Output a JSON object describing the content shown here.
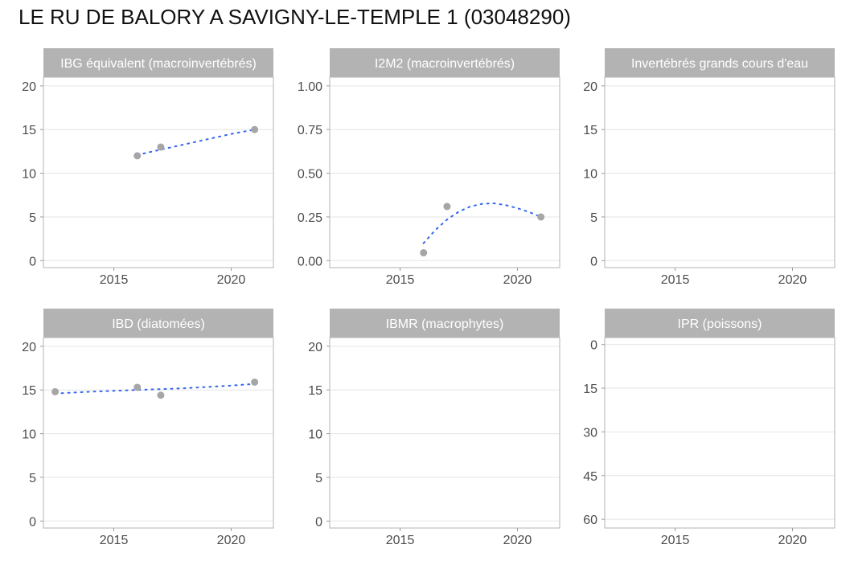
{
  "chart_data": {
    "title": "LE RU DE BALORY A SAVIGNY-LE-TEMPLE 1 (03048290)",
    "type": "scatter",
    "x_domain": [
      2012,
      2021.8
    ],
    "x_ticks": [
      2015,
      2020
    ],
    "panels": [
      {
        "title": "IBG équivalent (macroinvertébrés)",
        "y_domain": [
          -0.8,
          21.0
        ],
        "y_ticks": [
          0,
          5,
          10,
          15,
          20
        ],
        "y_tick_labels": [
          "0",
          "5",
          "10",
          "15",
          "20"
        ],
        "reversed": false,
        "points": [
          {
            "x": 2016,
            "y": 12
          },
          {
            "x": 2017,
            "y": 13
          },
          {
            "x": 2021,
            "y": 15
          }
        ],
        "trend": [
          {
            "x": 2016,
            "y": 12.1
          },
          {
            "x": 2017,
            "y": 12.7
          },
          {
            "x": 2018,
            "y": 13.3
          },
          {
            "x": 2019,
            "y": 13.9
          },
          {
            "x": 2020,
            "y": 14.5
          },
          {
            "x": 2021,
            "y": 15.0
          }
        ]
      },
      {
        "title": "I2M2 (macroinvertébrés)",
        "y_domain": [
          -0.04,
          1.05
        ],
        "y_ticks": [
          0,
          0.25,
          0.5,
          0.75,
          1.0
        ],
        "y_tick_labels": [
          "0.00",
          "0.25",
          "0.50",
          "0.75",
          "1.00"
        ],
        "reversed": false,
        "points": [
          {
            "x": 2016,
            "y": 0.045
          },
          {
            "x": 2017,
            "y": 0.31
          },
          {
            "x": 2021,
            "y": 0.25
          }
        ],
        "trend": [
          {
            "x": 2016,
            "y": 0.1
          },
          {
            "x": 2016.5,
            "y": 0.175
          },
          {
            "x": 2017,
            "y": 0.235
          },
          {
            "x": 2017.5,
            "y": 0.28
          },
          {
            "x": 2018,
            "y": 0.31
          },
          {
            "x": 2018.5,
            "y": 0.325
          },
          {
            "x": 2019,
            "y": 0.328
          },
          {
            "x": 2019.5,
            "y": 0.318
          },
          {
            "x": 2020,
            "y": 0.3
          },
          {
            "x": 2020.5,
            "y": 0.278
          },
          {
            "x": 2021,
            "y": 0.25
          }
        ]
      },
      {
        "title": "Invertébrés grands cours d'eau",
        "y_domain": [
          -0.8,
          21.0
        ],
        "y_ticks": [
          0,
          5,
          10,
          15,
          20
        ],
        "y_tick_labels": [
          "0",
          "5",
          "10",
          "15",
          "20"
        ],
        "reversed": false,
        "points": [],
        "trend": []
      },
      {
        "title": "IBD (diatomées)",
        "y_domain": [
          -0.8,
          21.0
        ],
        "y_ticks": [
          0,
          5,
          10,
          15,
          20
        ],
        "y_tick_labels": [
          "0",
          "5",
          "10",
          "15",
          "20"
        ],
        "reversed": false,
        "points": [
          {
            "x": 2012.5,
            "y": 14.8
          },
          {
            "x": 2016,
            "y": 15.3
          },
          {
            "x": 2017,
            "y": 14.4
          },
          {
            "x": 2021,
            "y": 15.9
          }
        ],
        "trend": [
          {
            "x": 2012.5,
            "y": 14.6
          },
          {
            "x": 2014,
            "y": 14.8
          },
          {
            "x": 2016,
            "y": 15.0
          },
          {
            "x": 2018,
            "y": 15.2
          },
          {
            "x": 2020,
            "y": 15.5
          },
          {
            "x": 2021,
            "y": 15.7
          }
        ]
      },
      {
        "title": "IBMR (macrophytes)",
        "y_domain": [
          -0.8,
          21.0
        ],
        "y_ticks": [
          0,
          5,
          10,
          15,
          20
        ],
        "y_tick_labels": [
          "0",
          "5",
          "10",
          "15",
          "20"
        ],
        "reversed": false,
        "points": [],
        "trend": []
      },
      {
        "title": "IPR (poissons)",
        "y_domain": [
          -2.4,
          63.0
        ],
        "y_ticks": [
          0,
          15,
          30,
          45,
          60
        ],
        "y_tick_labels": [
          "0",
          "15",
          "30",
          "45",
          "60"
        ],
        "reversed": true,
        "points": [],
        "trend": []
      }
    ],
    "colors": {
      "point": "#a6a6a6",
      "trend": "#3366ee",
      "strip": "#b3b3b3",
      "grid": "#e5e5e5",
      "border": "#b3b3b3"
    }
  }
}
